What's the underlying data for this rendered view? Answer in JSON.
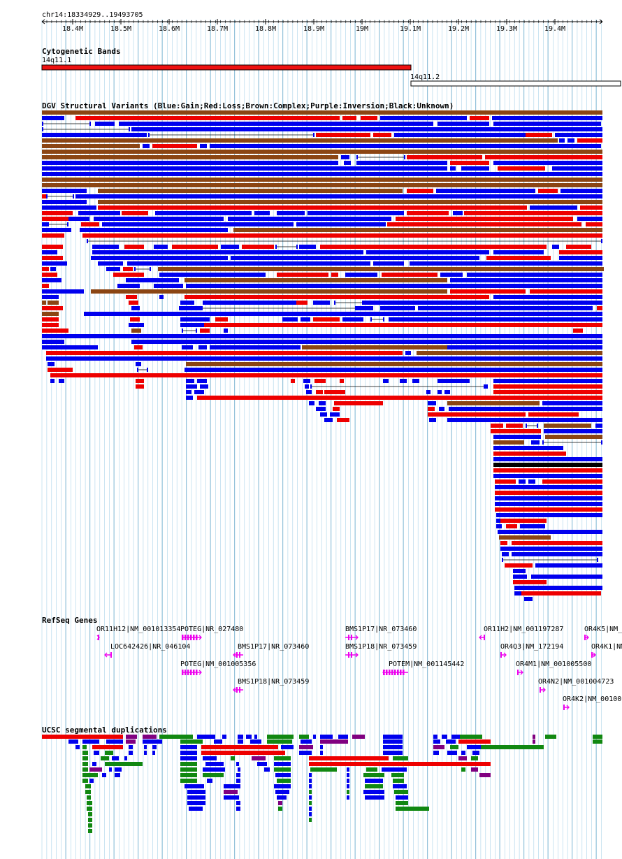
{
  "ruler": {
    "position": "chr14:18334929..19493705",
    "ticks": [
      "18.4M",
      "18.5M",
      "18.6M",
      "18.7M",
      "18.8M",
      "18.9M",
      "19M",
      "19.1M",
      "19.2M",
      "19.3M",
      "19.4M"
    ]
  },
  "tracks": {
    "cytoband": {
      "title": "Cytogenetic Bands",
      "bands": [
        {
          "name": "14q11.1",
          "color": "#ee1111"
        },
        {
          "name": "14q11.2",
          "color": "#ffffff"
        }
      ]
    },
    "dgv": {
      "title": "DGV Structural Variants (Blue:Gain;Red:Loss;Brown:Complex;Purple:Inversion;Black:Unknown)",
      "colors": {
        "gain": "#0000ee",
        "loss": "#ee0000",
        "complex": "#8b4513",
        "inversion": "#800080",
        "unknown": "#000000"
      }
    },
    "refseq": {
      "title": "RefSeq Genes",
      "color": "#ee00ee",
      "genes": [
        {
          "label": "OR11H12|NM_001013354",
          "strand": "+"
        },
        {
          "label": "POTEG|NR_027480",
          "strand": "+"
        },
        {
          "label": "BMS1P17|NR_073460",
          "strand": "+"
        },
        {
          "label": "OR11H2|NM_001197287",
          "strand": "-"
        },
        {
          "label": "OR4K5|NM_",
          "strand": "+"
        },
        {
          "label": "LOC642426|NR_046104",
          "strand": "-"
        },
        {
          "label": "BMS1P17|NR_073460",
          "strand": "-"
        },
        {
          "label": "BMS1P18|NR_073459",
          "strand": "+"
        },
        {
          "label": "OR4Q3|NM_172194",
          "strand": "+"
        },
        {
          "label": "OR4K1|NM",
          "strand": "+"
        },
        {
          "label": "POTEG|NM_001005356",
          "strand": "+"
        },
        {
          "label": "POTEM|NM_001145442",
          "strand": "-"
        },
        {
          "label": "OR4M1|NM_001005500",
          "strand": "+"
        },
        {
          "label": "BMS1P18|NR_073459",
          "strand": "-"
        },
        {
          "label": "OR4N2|NM_001004723",
          "strand": "+"
        },
        {
          "label": "OR4K2|NM_00100",
          "strand": "+"
        }
      ]
    },
    "segdup": {
      "title": "UCSC segmental duplications",
      "colors": {
        "red": "#ee0000",
        "blue": "#0000ee",
        "green": "#118811",
        "purple": "#800080"
      }
    }
  }
}
